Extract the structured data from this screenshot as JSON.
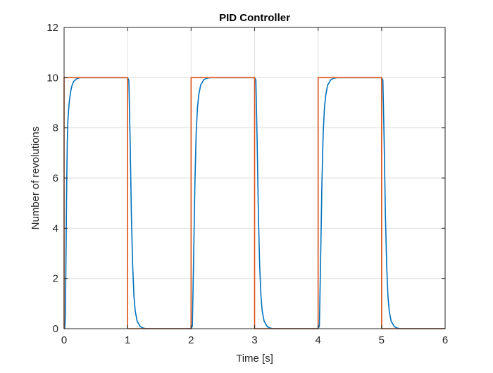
{
  "chart_data": {
    "type": "line",
    "title": "PID Controller",
    "xlabel": "Time [s]",
    "ylabel": "Number of revolutions",
    "xlim": [
      0,
      6
    ],
    "ylim": [
      0,
      12
    ],
    "xticks": [
      0,
      1,
      2,
      3,
      4,
      5,
      6
    ],
    "yticks": [
      0,
      2,
      4,
      6,
      8,
      10,
      12
    ],
    "grid": true,
    "legend": "none",
    "series": [
      {
        "color": "#0072BD",
        "x": [
          0,
          0.01,
          0.02,
          0.03,
          0.04,
          0.05,
          0.06,
          0.08,
          0.1,
          0.12,
          0.15,
          0.2,
          0.25,
          0.3,
          1.0,
          1.02,
          1.04,
          1.06,
          1.08,
          1.1,
          1.12,
          1.15,
          1.2,
          1.25,
          1.3,
          2.0,
          2.02,
          2.04,
          2.06,
          2.08,
          2.1,
          2.12,
          2.15,
          2.2,
          2.25,
          2.3,
          3.0,
          3.02,
          3.04,
          3.06,
          3.08,
          3.1,
          3.12,
          3.15,
          3.2,
          3.25,
          3.3,
          4.0,
          4.02,
          4.04,
          4.06,
          4.08,
          4.1,
          4.12,
          4.15,
          4.2,
          4.25,
          4.3,
          5.0,
          5.02,
          5.04,
          5.06,
          5.08,
          5.1,
          5.12,
          5.15,
          5.2,
          5.25,
          5.3,
          6.0
        ],
        "y": [
          0,
          0,
          0.5,
          2.8,
          5.5,
          7.4,
          8.3,
          9.0,
          9.4,
          9.65,
          9.85,
          9.96,
          10,
          10,
          10,
          9.9,
          7.5,
          4.5,
          2.5,
          1.3,
          0.7,
          0.3,
          0.08,
          0.02,
          0,
          0,
          0.1,
          2.8,
          5.8,
          7.8,
          8.8,
          9.3,
          9.7,
          9.92,
          9.98,
          10,
          10,
          9.9,
          7.5,
          4.5,
          2.5,
          1.3,
          0.7,
          0.3,
          0.08,
          0.02,
          0,
          0,
          0.1,
          2.8,
          5.8,
          7.8,
          8.8,
          9.3,
          9.7,
          9.92,
          9.98,
          10,
          10,
          9.9,
          7.5,
          4.5,
          2.5,
          1.3,
          0.7,
          0.3,
          0.08,
          0.02,
          0,
          0
        ]
      },
      {
        "color": "#D95319",
        "x": [
          0,
          0,
          1,
          1,
          2,
          2,
          3,
          3,
          4,
          4,
          5,
          5,
          6
        ],
        "y": [
          0,
          10,
          10,
          0,
          0,
          10,
          10,
          0,
          0,
          10,
          10,
          0,
          0
        ]
      }
    ]
  }
}
